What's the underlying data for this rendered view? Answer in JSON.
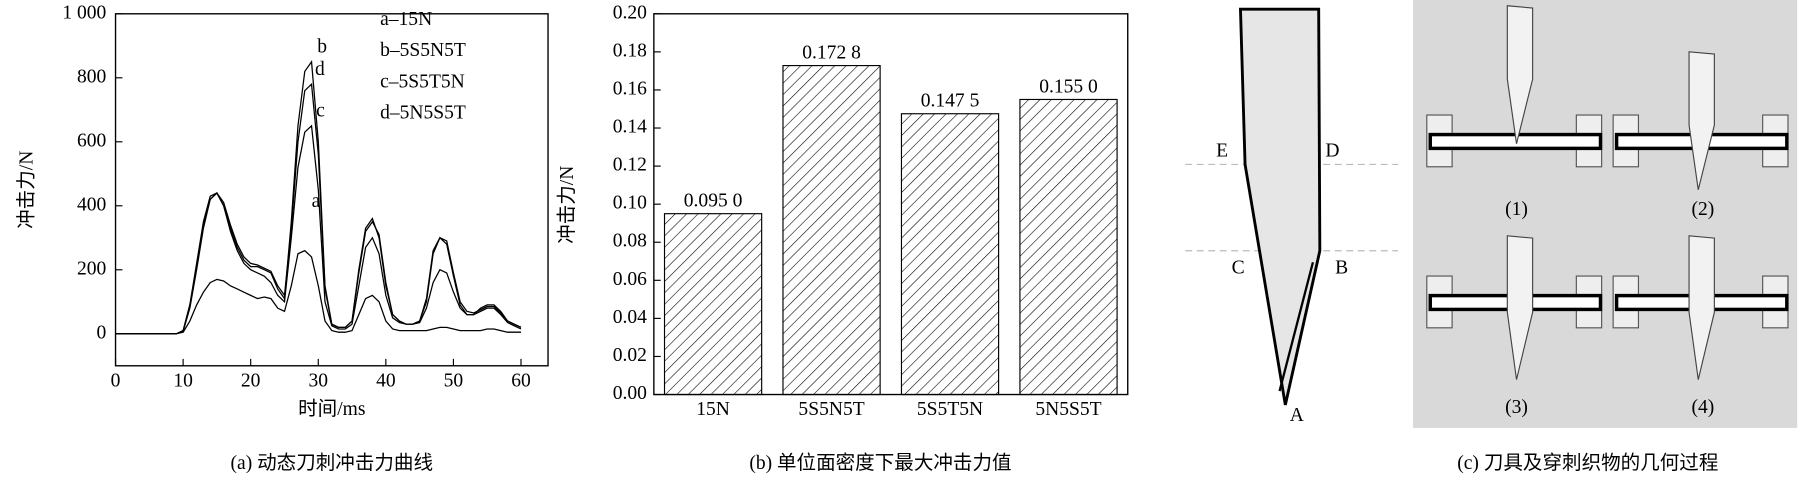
{
  "chart_data": [
    {
      "type": "line",
      "caption": "(a) 动态刀刺冲击力曲线",
      "xlabel": "时间/ms",
      "ylabel": "冲击力/N",
      "x": [
        0,
        1,
        2,
        3,
        4,
        5,
        6,
        7,
        8,
        9,
        10,
        11,
        12,
        13,
        14,
        15,
        16,
        17,
        18,
        19,
        20,
        21,
        22,
        23,
        24,
        25,
        26,
        27,
        28,
        29,
        30,
        31,
        32,
        33,
        34,
        35,
        36,
        37,
        38,
        39,
        40,
        41,
        42,
        43,
        44,
        45,
        46,
        47,
        48,
        49,
        50,
        51,
        52,
        53,
        54,
        55,
        56,
        57,
        58,
        59,
        60
      ],
      "series": [
        {
          "name": "a–15N",
          "color": "#000000",
          "values": [
            0,
            0,
            0,
            0,
            0,
            0,
            0,
            0,
            0,
            0,
            5,
            40,
            90,
            130,
            160,
            170,
            165,
            150,
            140,
            130,
            120,
            110,
            115,
            110,
            80,
            70,
            150,
            250,
            260,
            240,
            150,
            40,
            10,
            5,
            5,
            10,
            60,
            110,
            120,
            100,
            40,
            15,
            10,
            10,
            10,
            10,
            10,
            15,
            20,
            20,
            15,
            10,
            10,
            10,
            10,
            15,
            15,
            10,
            5,
            5,
            5
          ]
        },
        {
          "name": "b–5S5N5T",
          "color": "#000000",
          "values": [
            0,
            0,
            0,
            0,
            0,
            0,
            0,
            0,
            0,
            0,
            10,
            90,
            220,
            350,
            430,
            440,
            400,
            330,
            270,
            230,
            210,
            210,
            200,
            190,
            140,
            110,
            350,
            650,
            820,
            850,
            600,
            150,
            30,
            20,
            20,
            40,
            200,
            330,
            360,
            300,
            150,
            60,
            40,
            30,
            30,
            40,
            100,
            250,
            300,
            280,
            180,
            90,
            60,
            60,
            80,
            90,
            90,
            70,
            40,
            30,
            20
          ]
        },
        {
          "name": "c–5S5T5N",
          "color": "#000000",
          "values": [
            0,
            0,
            0,
            0,
            0,
            0,
            0,
            0,
            0,
            0,
            8,
            80,
            200,
            330,
            420,
            440,
            400,
            320,
            260,
            220,
            200,
            190,
            180,
            160,
            120,
            100,
            300,
            520,
            630,
            650,
            450,
            100,
            25,
            15,
            15,
            30,
            150,
            270,
            300,
            250,
            120,
            50,
            35,
            30,
            30,
            35,
            80,
            160,
            200,
            190,
            130,
            80,
            60,
            60,
            70,
            80,
            80,
            60,
            35,
            25,
            15
          ]
        },
        {
          "name": "d–5N5S5T",
          "color": "#000000",
          "values": [
            0,
            0,
            0,
            0,
            0,
            0,
            0,
            0,
            0,
            0,
            10,
            90,
            210,
            340,
            420,
            440,
            410,
            340,
            280,
            240,
            220,
            215,
            205,
            195,
            150,
            120,
            330,
            600,
            760,
            780,
            560,
            140,
            30,
            20,
            20,
            40,
            190,
            320,
            350,
            310,
            160,
            60,
            40,
            30,
            30,
            40,
            110,
            260,
            300,
            290,
            190,
            100,
            70,
            65,
            75,
            85,
            85,
            65,
            40,
            30,
            20
          ]
        }
      ],
      "annotations": [
        "a",
        "b",
        "c",
        "d"
      ],
      "legend": "upper right",
      "xlim": [
        0,
        64
      ],
      "xticks": [
        0,
        10,
        20,
        30,
        40,
        50,
        60
      ],
      "ylim": [
        -100,
        1000
      ],
      "yticks": [
        0,
        200,
        400,
        600,
        800,
        {
          "value": 1000,
          "label": "1 000"
        }
      ]
    },
    {
      "type": "bar",
      "caption": "(b) 单位面密度下最大冲击力值",
      "ylabel": "冲击力/N",
      "categories": [
        "15N",
        "5S5N5T",
        "5S5T5N",
        "5N5S5T"
      ],
      "values": [
        0.095,
        0.1728,
        0.1475,
        0.155
      ],
      "value_labels": [
        "0.095 0",
        "0.172 8",
        "0.147 5",
        "0.155 0"
      ],
      "color": "#000000",
      "ylim": [
        0,
        0.2
      ],
      "yticks": [
        {
          "value": 0,
          "label": "0.00"
        },
        {
          "value": 0.02,
          "label": "0.02"
        },
        {
          "value": 0.04,
          "label": "0.04"
        },
        {
          "value": 0.06,
          "label": "0.06"
        },
        {
          "value": 0.08,
          "label": "0.08"
        },
        {
          "value": 0.1,
          "label": "0.10"
        },
        {
          "value": 0.12,
          "label": "0.12"
        },
        {
          "value": 0.14,
          "label": "0.14"
        },
        {
          "value": 0.16,
          "label": "0.16"
        },
        {
          "value": 0.18,
          "label": "0.18"
        },
        {
          "value": 0.2,
          "label": "0.20"
        }
      ]
    }
  ],
  "diagram": {
    "points": [
      "E",
      "D",
      "C",
      "B",
      "A"
    ],
    "steps": [
      "(1)",
      "(2)",
      "(3)",
      "(4)"
    ],
    "caption": "(c) 刀具及穿刺织物的几何过程"
  }
}
